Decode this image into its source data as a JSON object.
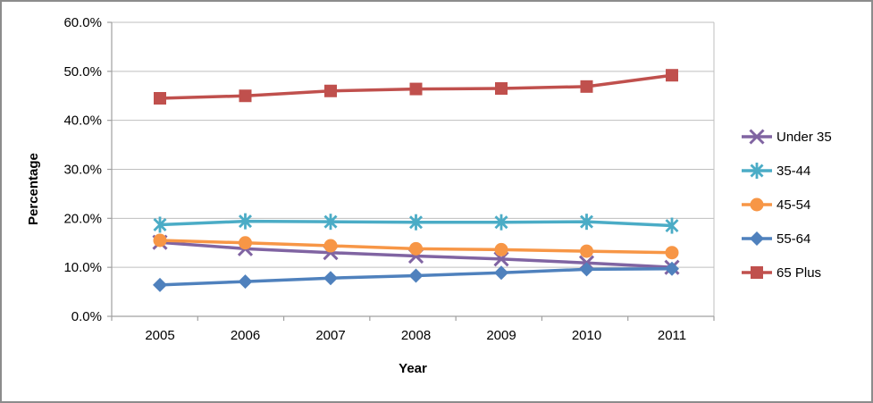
{
  "chart_data": {
    "type": "line",
    "title": "",
    "xlabel": "Year",
    "ylabel": "Percentage",
    "x_categories": [
      "2005",
      "2006",
      "2007",
      "2008",
      "2009",
      "2010",
      "2011"
    ],
    "y_tick_labels": [
      "0.0%",
      "10.0%",
      "20.0%",
      "30.0%",
      "40.0%",
      "50.0%",
      "60.0%"
    ],
    "ylim": [
      0,
      60
    ],
    "y_tick_step": 10,
    "grid": "horizontal",
    "legend_position": "right",
    "series": [
      {
        "name": "Under 35",
        "marker": "x",
        "color": "#8064A2",
        "values": [
          15.1,
          13.8,
          13.0,
          12.3,
          11.7,
          10.9,
          10.0
        ]
      },
      {
        "name": "35-44",
        "marker": "asterisk",
        "color": "#4BACC6",
        "values": [
          18.7,
          19.4,
          19.3,
          19.2,
          19.2,
          19.3,
          18.5
        ]
      },
      {
        "name": "45-54",
        "marker": "circle",
        "color": "#F79646",
        "values": [
          15.5,
          15.0,
          14.4,
          13.8,
          13.6,
          13.3,
          13.0
        ]
      },
      {
        "name": "55-64",
        "marker": "diamond",
        "color": "#4F81BD",
        "values": [
          6.4,
          7.1,
          7.8,
          8.3,
          8.9,
          9.6,
          9.7
        ]
      },
      {
        "name": "65 Plus",
        "marker": "square",
        "color": "#C0504D",
        "values": [
          44.5,
          45.0,
          46.0,
          46.4,
          46.5,
          46.9,
          49.2
        ]
      }
    ],
    "colors": {
      "axis_line": "#a0a0a0",
      "gridline": "#bfbfbf",
      "text": "#000000",
      "frame_border": "#8c8c8c",
      "background": "#ffffff"
    }
  }
}
